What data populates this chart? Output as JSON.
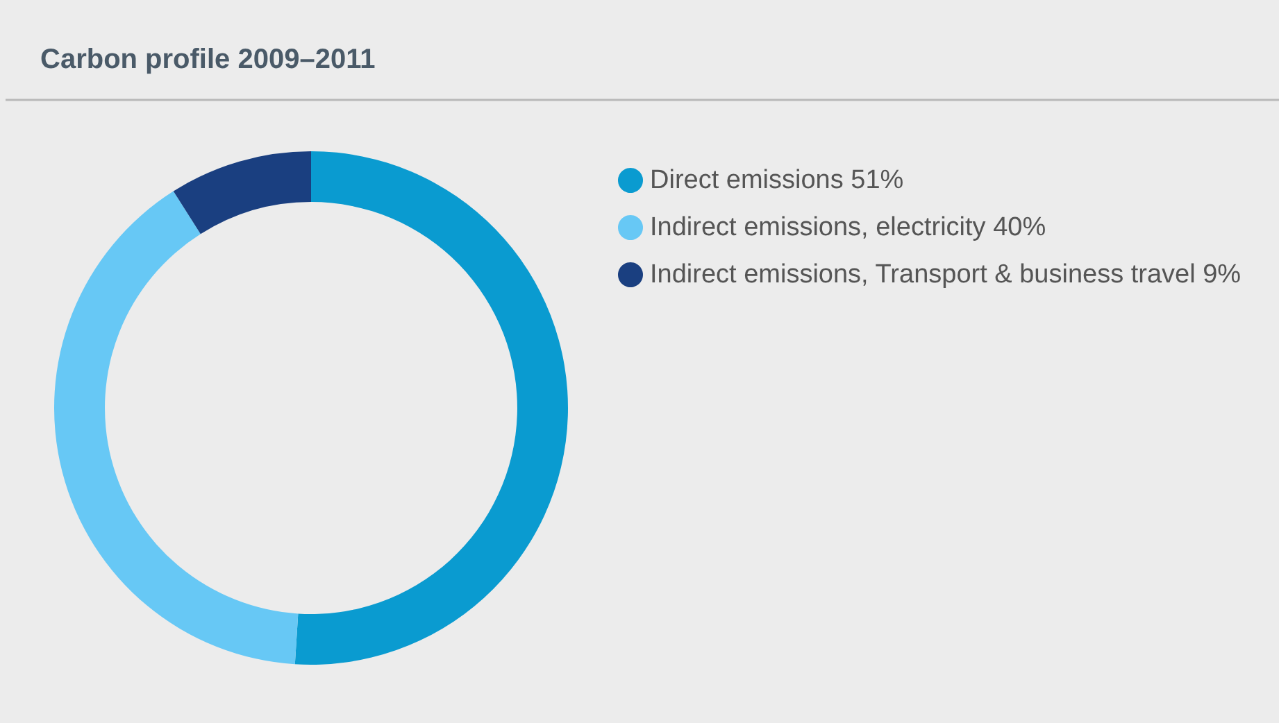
{
  "chart_data": {
    "type": "donut",
    "title": "Carbon profile 2009–2011",
    "categories": [
      "Direct emissions 51%",
      "Indirect emissions, electricity 40%",
      "Indirect emissions, Transport & business travel 9%"
    ],
    "values": [
      51,
      40,
      9
    ],
    "colors": [
      "#0a9bd0",
      "#67c8f5",
      "#1a3f80"
    ],
    "legend": "top right"
  }
}
